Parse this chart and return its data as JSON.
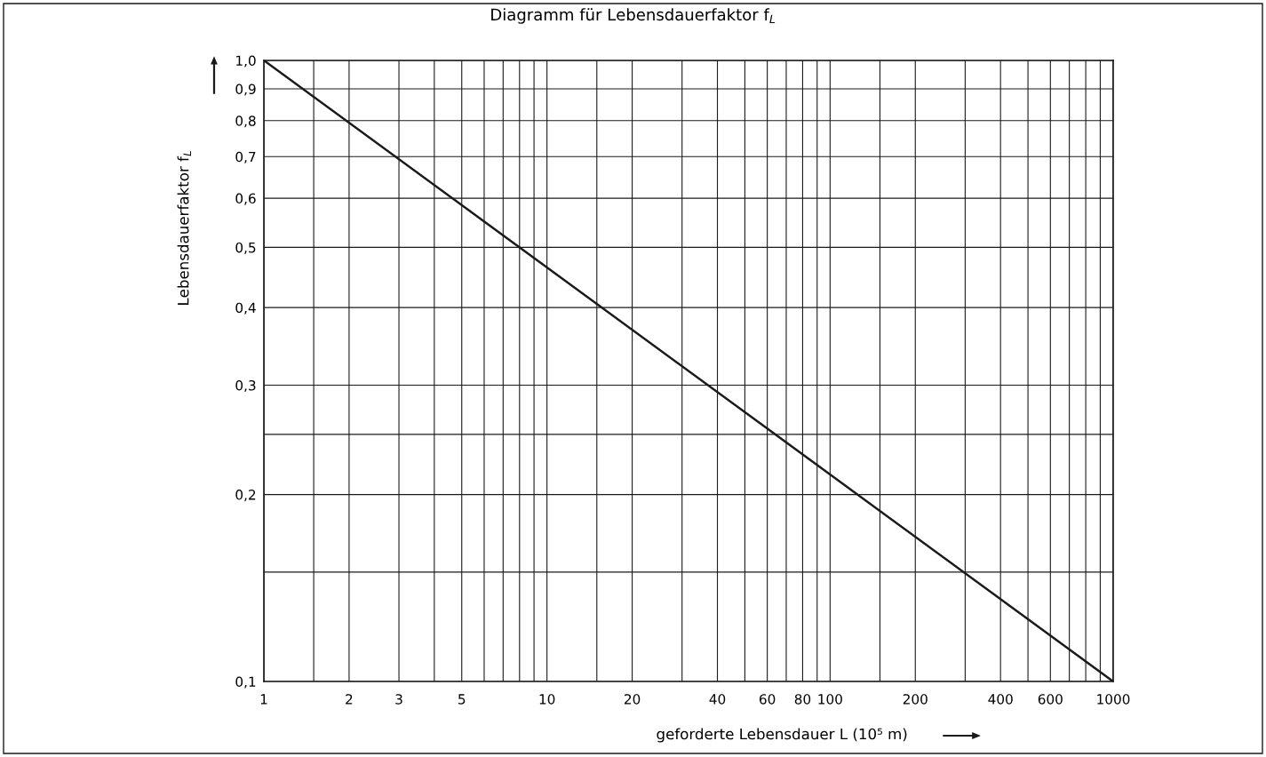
{
  "chart_data": {
    "type": "line",
    "title": "Diagramm für Lebensdauerfaktor f$_{L}$",
    "xlabel": "geforderte Lebensdauer L (10⁵ m)",
    "ylabel": "Lebensdauerfaktor f$_{L}$",
    "log": "xy",
    "grid": true,
    "tick_labels": "xy",
    "xlim": [
      1,
      1000
    ],
    "ylim": [
      0.1,
      1.0
    ],
    "xticks": [
      1,
      {
        "value": 1.5,
        "label": null
      },
      2,
      3,
      {
        "value": 4,
        "label": null
      },
      5,
      {
        "value": 6,
        "label": null
      },
      {
        "value": 7,
        "label": null
      },
      {
        "value": 8,
        "label": null
      },
      {
        "value": 9,
        "label": null
      },
      10,
      {
        "value": 15,
        "label": null
      },
      20,
      {
        "value": 30,
        "label": null
      },
      40,
      {
        "value": 50,
        "label": null
      },
      60,
      {
        "value": 70,
        "label": null
      },
      80,
      {
        "value": 90,
        "label": null
      },
      100,
      {
        "value": 150,
        "label": null
      },
      200,
      {
        "value": 300,
        "label": null
      },
      400,
      {
        "value": 500,
        "label": null
      },
      600,
      {
        "value": 700,
        "label": null
      },
      {
        "value": 800,
        "label": null
      },
      {
        "value": 900,
        "label": null
      },
      1000
    ],
    "yticks": [
      {
        "value": 0.1,
        "label": "0,1"
      },
      {
        "value": 0.15,
        "label": null
      },
      {
        "value": 0.2,
        "label": "0,2"
      },
      {
        "value": 0.25,
        "label": null
      },
      {
        "value": 0.3,
        "label": "0,3"
      },
      {
        "value": 0.4,
        "label": "0,4"
      },
      {
        "value": 0.5,
        "label": "0,5"
      },
      {
        "value": 0.6,
        "label": "0,6"
      },
      {
        "value": 0.7,
        "label": "0,7"
      },
      {
        "value": 0.8,
        "label": "0,8"
      },
      {
        "value": 0.9,
        "label": "0,9"
      },
      {
        "value": 1.0,
        "label": "1,0"
      }
    ],
    "series": [
      {
        "color": "#1a1a1a",
        "x": [
          1,
          1000
        ],
        "values": [
          1.0,
          0.1
        ]
      }
    ]
  }
}
